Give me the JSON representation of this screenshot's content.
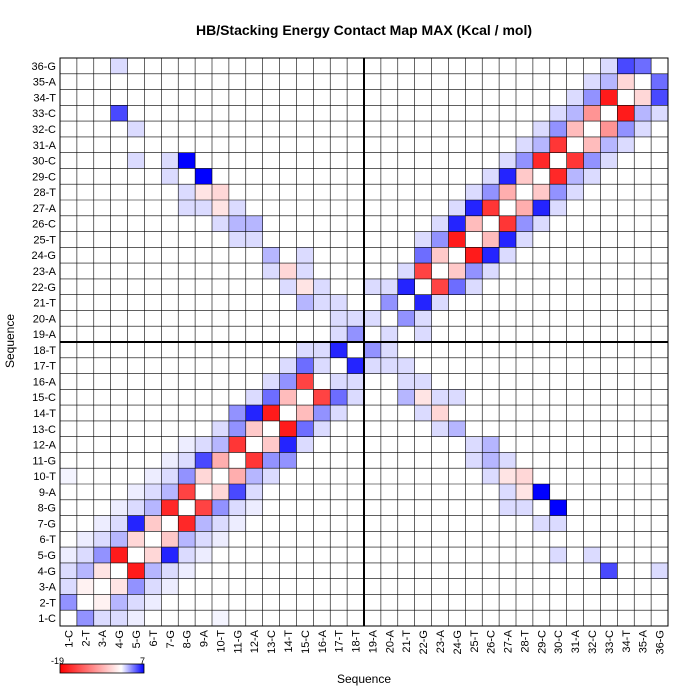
{
  "chart_data": {
    "type": "heatmap",
    "title": "HB/Stacking Energy Contact Map MAX (Kcal / mol)",
    "xlabel": "Sequence",
    "ylabel": "Sequence",
    "labels": [
      "1-C",
      "2-T",
      "3-A",
      "4-G",
      "5-G",
      "6-T",
      "7-G",
      "8-G",
      "9-A",
      "10-T",
      "11-G",
      "12-A",
      "13-C",
      "14-T",
      "15-C",
      "16-A",
      "17-T",
      "18-T",
      "19-A",
      "20-A",
      "21-T",
      "22-G",
      "23-A",
      "24-G",
      "25-T",
      "26-C",
      "27-A",
      "28-T",
      "29-C",
      "30-C",
      "31-A",
      "32-C",
      "33-C",
      "34-T",
      "35-A",
      "36-G"
    ],
    "colorbar": {
      "min": -19,
      "max": 7,
      "min_label": "-19",
      "max_label": "7",
      "low_color": "#ff0000",
      "mid_color": "#ffffff",
      "high_color": "#0000ff"
    },
    "grid": true,
    "dividers_after": [
      18
    ],
    "cells": [
      [
        1,
        2,
        3
      ],
      [
        1,
        3,
        1
      ],
      [
        1,
        4,
        1
      ],
      [
        1,
        5,
        0.5
      ],
      [
        1,
        10,
        0.3
      ],
      [
        2,
        3,
        -1
      ],
      [
        2,
        4,
        2
      ],
      [
        2,
        5,
        1
      ],
      [
        2,
        6,
        0.5
      ],
      [
        3,
        4,
        -2
      ],
      [
        3,
        5,
        3
      ],
      [
        3,
        6,
        1
      ],
      [
        3,
        7,
        0.5
      ],
      [
        4,
        5,
        -17
      ],
      [
        4,
        6,
        2
      ],
      [
        4,
        7,
        1
      ],
      [
        4,
        8,
        0.5
      ],
      [
        4,
        33,
        5
      ],
      [
        4,
        36,
        1
      ],
      [
        5,
        6,
        -3
      ],
      [
        5,
        7,
        6
      ],
      [
        5,
        8,
        1
      ],
      [
        5,
        9,
        0.5
      ],
      [
        5,
        30,
        1
      ],
      [
        5,
        32,
        1
      ],
      [
        6,
        7,
        -4
      ],
      [
        6,
        8,
        2
      ],
      [
        6,
        9,
        1
      ],
      [
        6,
        10,
        0.5
      ],
      [
        7,
        8,
        -16
      ],
      [
        7,
        9,
        2
      ],
      [
        7,
        10,
        1
      ],
      [
        7,
        11,
        0.5
      ],
      [
        7,
        29,
        1
      ],
      [
        7,
        30,
        1
      ],
      [
        8,
        9,
        -14
      ],
      [
        8,
        10,
        3
      ],
      [
        8,
        11,
        1
      ],
      [
        8,
        12,
        0.5
      ],
      [
        8,
        27,
        1
      ],
      [
        8,
        28,
        1
      ],
      [
        8,
        30,
        7
      ],
      [
        9,
        10,
        -3
      ],
      [
        9,
        11,
        5
      ],
      [
        9,
        12,
        1
      ],
      [
        9,
        27,
        1
      ],
      [
        9,
        28,
        -2
      ],
      [
        9,
        29,
        7
      ],
      [
        10,
        11,
        -6
      ],
      [
        10,
        12,
        2
      ],
      [
        10,
        13,
        1
      ],
      [
        10,
        26,
        1
      ],
      [
        10,
        27,
        -2
      ],
      [
        10,
        28,
        -3
      ],
      [
        11,
        12,
        -15
      ],
      [
        11,
        13,
        3
      ],
      [
        11,
        14,
        3
      ],
      [
        11,
        25,
        1
      ],
      [
        11,
        26,
        2
      ],
      [
        11,
        27,
        1
      ],
      [
        12,
        13,
        -4
      ],
      [
        12,
        14,
        6
      ],
      [
        12,
        15,
        1
      ],
      [
        12,
        25,
        1
      ],
      [
        12,
        26,
        2
      ],
      [
        13,
        14,
        -17
      ],
      [
        13,
        15,
        4
      ],
      [
        13,
        16,
        1
      ],
      [
        13,
        23,
        1
      ],
      [
        13,
        24,
        2
      ],
      [
        14,
        15,
        -5
      ],
      [
        14,
        16,
        3
      ],
      [
        14,
        17,
        1
      ],
      [
        14,
        22,
        1
      ],
      [
        14,
        23,
        -3
      ],
      [
        15,
        16,
        -14
      ],
      [
        15,
        17,
        4
      ],
      [
        15,
        18,
        1
      ],
      [
        15,
        21,
        2
      ],
      [
        15,
        22,
        -2
      ],
      [
        15,
        23,
        1
      ],
      [
        15,
        24,
        1
      ],
      [
        16,
        17,
        1
      ],
      [
        16,
        18,
        1
      ],
      [
        16,
        21,
        1
      ],
      [
        16,
        22,
        1
      ],
      [
        17,
        18,
        6
      ],
      [
        17,
        19,
        1
      ],
      [
        17,
        20,
        1
      ],
      [
        17,
        21,
        1
      ],
      [
        18,
        19,
        3
      ],
      [
        18,
        20,
        1
      ],
      [
        19,
        20,
        1
      ],
      [
        19,
        22,
        1
      ],
      [
        20,
        21,
        3
      ],
      [
        20,
        22,
        1
      ],
      [
        21,
        22,
        6
      ],
      [
        21,
        23,
        1
      ],
      [
        22,
        23,
        -14
      ],
      [
        22,
        24,
        4
      ],
      [
        22,
        25,
        1
      ],
      [
        23,
        24,
        -4
      ],
      [
        23,
        25,
        3
      ],
      [
        23,
        26,
        1
      ],
      [
        24,
        25,
        -17
      ],
      [
        24,
        26,
        6
      ],
      [
        24,
        27,
        1
      ],
      [
        25,
        26,
        -5
      ],
      [
        25,
        27,
        6
      ],
      [
        25,
        28,
        1
      ],
      [
        26,
        27,
        -15
      ],
      [
        26,
        28,
        3
      ],
      [
        26,
        29,
        1
      ],
      [
        27,
        28,
        -6
      ],
      [
        27,
        29,
        6
      ],
      [
        27,
        30,
        1
      ],
      [
        28,
        29,
        -4
      ],
      [
        28,
        30,
        3
      ],
      [
        28,
        31,
        1
      ],
      [
        29,
        30,
        -16
      ],
      [
        29,
        31,
        2
      ],
      [
        29,
        32,
        1
      ],
      [
        30,
        31,
        -15
      ],
      [
        30,
        32,
        3
      ],
      [
        30,
        33,
        1
      ],
      [
        31,
        32,
        -5
      ],
      [
        31,
        33,
        2
      ],
      [
        31,
        34,
        1
      ],
      [
        32,
        33,
        -8
      ],
      [
        32,
        34,
        3
      ],
      [
        32,
        35,
        1
      ],
      [
        33,
        34,
        -17
      ],
      [
        33,
        35,
        2
      ],
      [
        33,
        36,
        1
      ],
      [
        34,
        35,
        -3
      ],
      [
        34,
        36,
        5
      ],
      [
        35,
        36,
        4
      ]
    ]
  }
}
